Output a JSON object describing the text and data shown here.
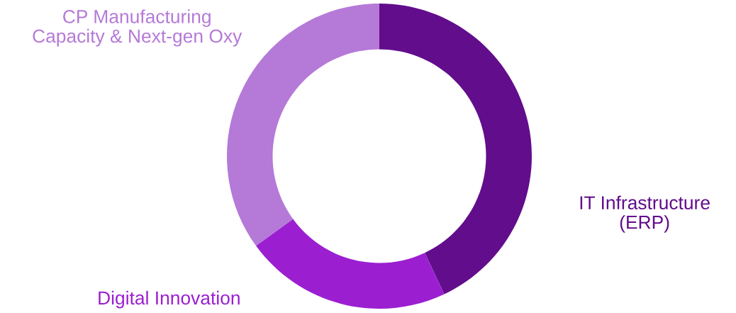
{
  "chart_data": {
    "type": "donut",
    "categories": [
      "IT Infrastructure\n(ERP)",
      "Digital Innovation",
      "CP Manufacturing\nCapacity & Next-gen Oxy"
    ],
    "values": [
      43,
      22,
      35
    ],
    "colors": [
      "#620d8c",
      "#9b1fd1",
      "#b579d8"
    ]
  }
}
